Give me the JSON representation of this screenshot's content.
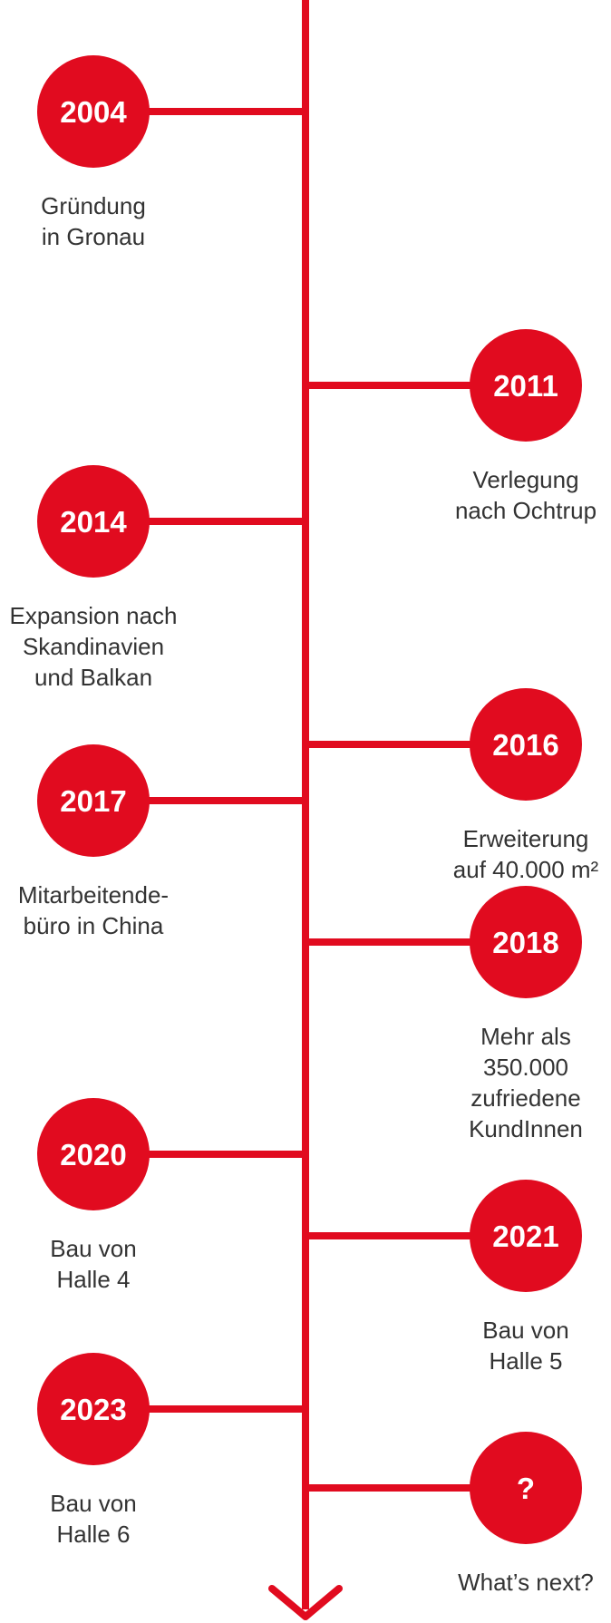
{
  "accent_color": "#E10B1F",
  "milestones": [
    {
      "year": "2004",
      "side": "left",
      "lines": [
        "Gründung",
        "in Gronau"
      ]
    },
    {
      "year": "2011",
      "side": "right",
      "lines": [
        "Verlegung",
        "nach Ochtrup"
      ]
    },
    {
      "year": "2014",
      "side": "left",
      "lines": [
        "Expansion nach",
        "Skandinavien",
        "und Balkan"
      ]
    },
    {
      "year": "2016",
      "side": "right",
      "lines": [
        "Erweiterung",
        "auf 40.000 m²"
      ]
    },
    {
      "year": "2017",
      "side": "left",
      "lines": [
        "Mitarbeitende-",
        "büro in China"
      ]
    },
    {
      "year": "2018",
      "side": "right",
      "lines": [
        "Mehr als",
        "350.000",
        "zufriedene",
        "KundInnen"
      ]
    },
    {
      "year": "2020",
      "side": "left",
      "lines": [
        "Bau von",
        "Halle 4"
      ]
    },
    {
      "year": "2021",
      "side": "right",
      "lines": [
        "Bau von",
        "Halle 5"
      ]
    },
    {
      "year": "2023",
      "side": "left",
      "lines": [
        "Bau von",
        "Halle 6"
      ]
    },
    {
      "year": "?",
      "side": "right",
      "lines": [
        "What’s next?"
      ]
    }
  ]
}
